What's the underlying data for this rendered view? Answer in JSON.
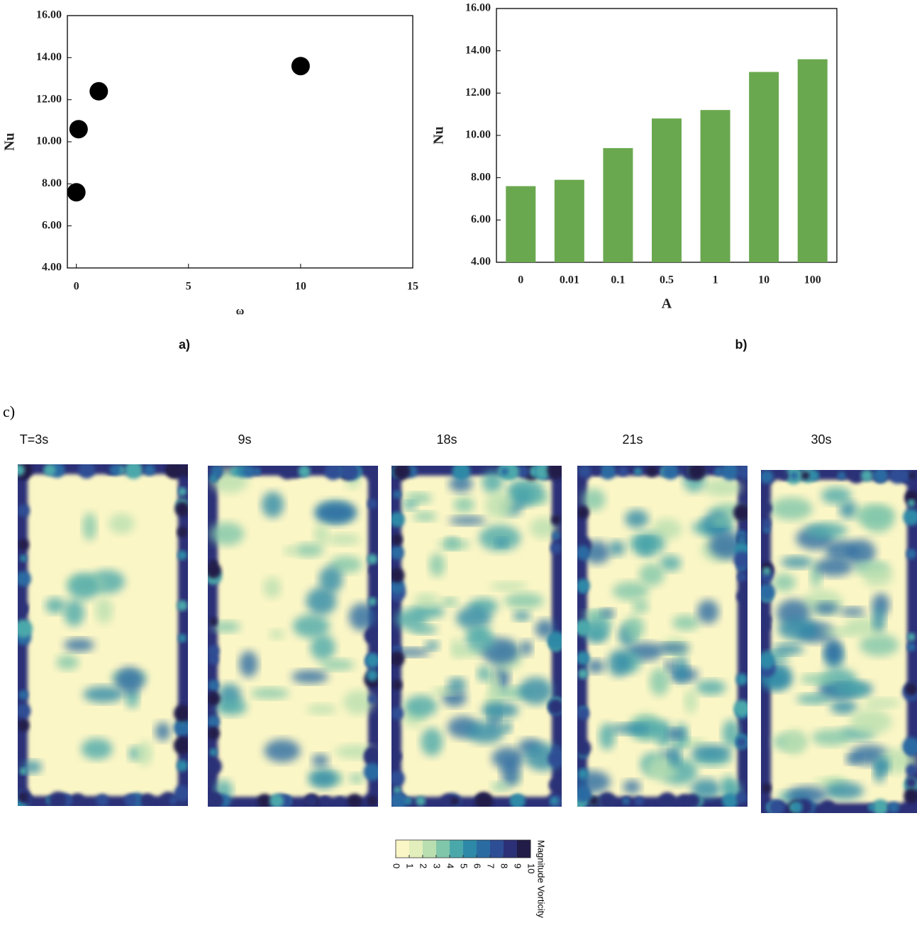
{
  "chart_data": [
    {
      "type": "scatter",
      "panel_label": "a)",
      "x_label": "ω",
      "y_label": "Nu",
      "x": [
        0,
        0.1,
        1,
        10
      ],
      "values": [
        7.6,
        10.6,
        12.4,
        13.6
      ],
      "color": "#000000",
      "xlim": [
        -0.4,
        15
      ],
      "xticks": [
        0,
        5,
        10,
        15
      ],
      "ylim": [
        4,
        16
      ],
      "yticks": [
        {
          "value": 4,
          "label": "4.00"
        },
        {
          "value": 6,
          "label": "6.00"
        },
        {
          "value": 8,
          "label": "8.00"
        },
        {
          "value": 10,
          "label": "10.00"
        },
        {
          "value": 12,
          "label": "12.00"
        },
        {
          "value": 14,
          "label": "14.00"
        },
        {
          "value": 16,
          "label": "16.00"
        }
      ],
      "grid": false
    },
    {
      "type": "bar",
      "panel_label": "b)",
      "x_label": "A",
      "y_label": "Nu",
      "categories": [
        "0",
        "0.01",
        "0.1",
        "0.5",
        "1",
        "10",
        "100"
      ],
      "values": [
        7.6,
        7.9,
        9.4,
        10.8,
        11.2,
        13.0,
        13.6
      ],
      "color": "#6aa84f",
      "ylim": [
        4,
        16
      ],
      "yticks": [
        {
          "value": 4,
          "label": "4.00"
        },
        {
          "value": 6,
          "label": "6.00"
        },
        {
          "value": 8,
          "label": "8.00"
        },
        {
          "value": 10,
          "label": "10.00"
        },
        {
          "value": 12,
          "label": "12.00"
        },
        {
          "value": 14,
          "label": "14.00"
        },
        {
          "value": 16,
          "label": "16.00"
        }
      ],
      "grid": false
    }
  ],
  "panel_c": {
    "label": "c)",
    "times": [
      "T=3s",
      "9s",
      "18s",
      "21s",
      "30s"
    ],
    "colorbar": {
      "label": "Magnitude Vorticity",
      "ticks": [
        0,
        1,
        2,
        3,
        4,
        5,
        6,
        7,
        8,
        9,
        10
      ],
      "colors": [
        "#fbf6c6",
        "#e2eebb",
        "#b9dfb0",
        "#80c6aa",
        "#4ba8aa",
        "#2d89a7",
        "#2a6ba2",
        "#2d4d94",
        "#2b3077",
        "#211c48"
      ]
    }
  }
}
